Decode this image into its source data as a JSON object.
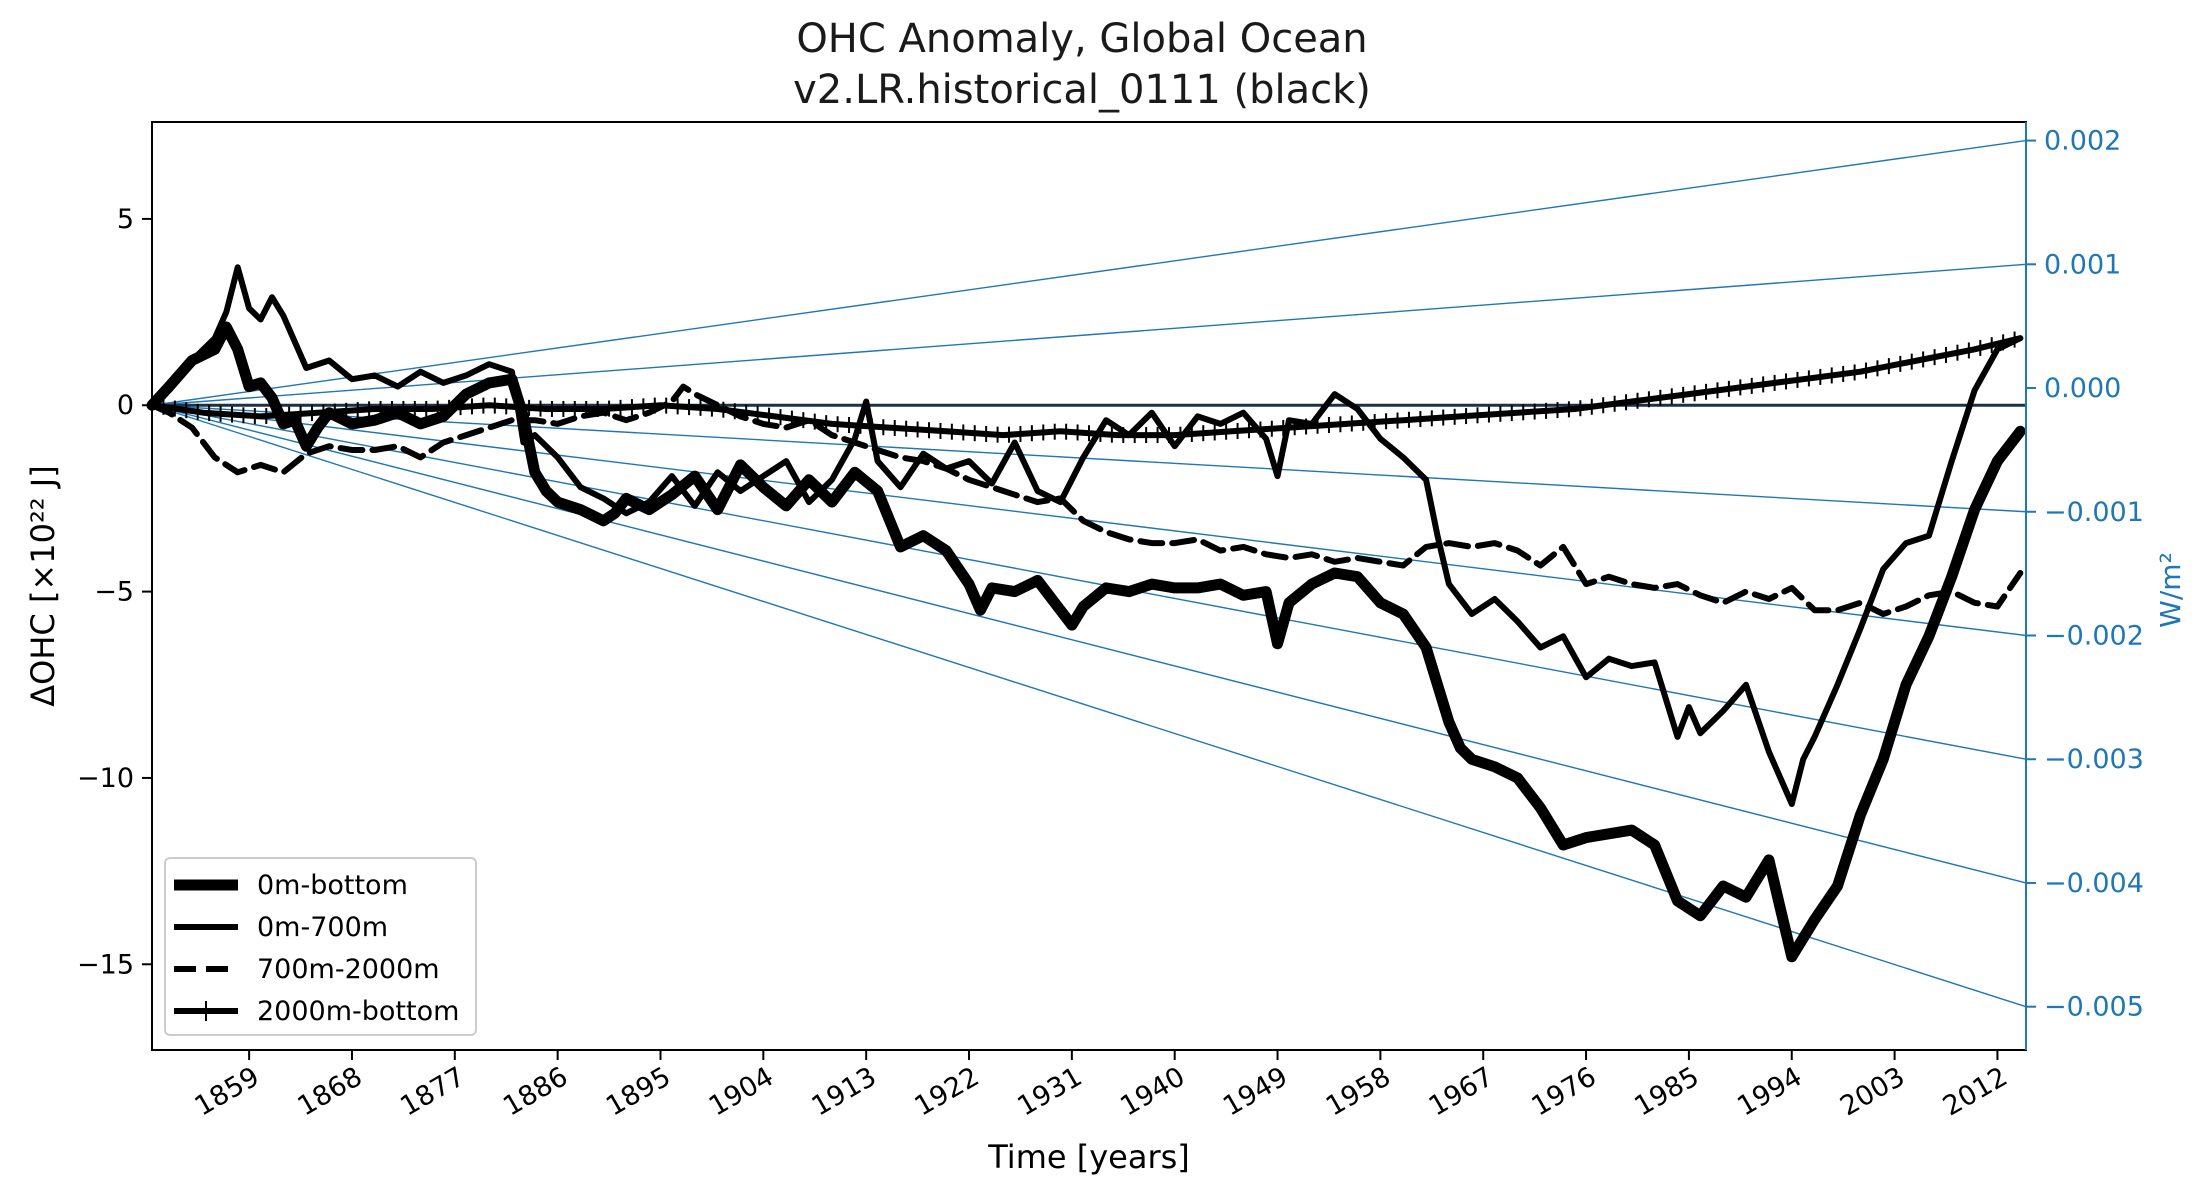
{
  "chart_data": {
    "type": "line",
    "title": "OHC Anomaly, Global Ocean",
    "subtitle": "v2.LR.historical_0111 (black)",
    "xlabel": "Time [years]",
    "ylabel": "ΔOHC [×10²² J]",
    "ylabel_right": "W/m²",
    "xlim": [
      1850.5,
      2014.5
    ],
    "ylim": [
      -17.3,
      7.6
    ],
    "y2lim": [
      -0.00535,
      0.00215
    ],
    "x_ticks": [
      1859,
      1868,
      1877,
      1886,
      1895,
      1904,
      1913,
      1922,
      1931,
      1940,
      1949,
      1958,
      1967,
      1976,
      1985,
      1994,
      2003,
      2012
    ],
    "x_tick_labels": [
      "1859",
      "1868",
      "1877",
      "1886",
      "1895",
      "1904",
      "1913",
      "1922",
      "1931",
      "1940",
      "1949",
      "1958",
      "1967",
      "1976",
      "1985",
      "1994",
      "2003",
      "2012"
    ],
    "y_ticks": [
      5,
      0,
      -5,
      -10,
      -15
    ],
    "y_tick_labels": [
      "5",
      "0",
      "−5",
      "−10",
      "−15"
    ],
    "y2_ticks": [
      0.002,
      0.001,
      0.0,
      -0.001,
      -0.002,
      -0.003,
      -0.004,
      -0.005
    ],
    "y2_tick_labels": [
      "0.002",
      "0.001",
      "0.000",
      "−0.001",
      "−0.002",
      "−0.003",
      "−0.004",
      "−0.005"
    ],
    "reference_lines": {
      "description": "constant heating-rate lines from origin (W/m²)",
      "origin_year": 1850.5,
      "rates": [
        0.002,
        0.001,
        0.0,
        -0.001,
        -0.002,
        -0.003,
        -0.004,
        -0.005
      ]
    },
    "series": [
      {
        "name": "0m-bottom",
        "style": "thick-solid",
        "x": [
          1850.5,
          1852,
          1854,
          1856,
          1857,
          1858,
          1859,
          1860,
          1861,
          1862,
          1863,
          1864,
          1865,
          1866,
          1868,
          1870,
          1872,
          1874,
          1876,
          1878,
          1880,
          1882,
          1883,
          1884,
          1885,
          1886,
          1888,
          1890,
          1891,
          1892,
          1894,
          1896,
          1898,
          1900,
          1902,
          1904,
          1906,
          1908,
          1910,
          1912,
          1914,
          1916,
          1918,
          1920,
          1922,
          1923,
          1924,
          1926,
          1928,
          1930,
          1931,
          1932,
          1934,
          1936,
          1938,
          1940,
          1942,
          1944,
          1946,
          1948,
          1949,
          1950,
          1952,
          1954,
          1956,
          1958,
          1960,
          1962,
          1964,
          1965,
          1966,
          1968,
          1970,
          1972,
          1974,
          1976,
          1978,
          1980,
          1982,
          1984,
          1986,
          1988,
          1990,
          1992,
          1993,
          1994,
          1996,
          1998,
          2000,
          2002,
          2004,
          2006,
          2008,
          2010,
          2012,
          2014
        ],
        "y": [
          0,
          0.5,
          1.2,
          1.5,
          2.1,
          1.5,
          0.5,
          0.6,
          0.2,
          -0.5,
          -0.4,
          -1.1,
          -0.6,
          -0.2,
          -0.5,
          -0.4,
          -0.2,
          -0.5,
          -0.3,
          0.3,
          0.6,
          0.7,
          -0.3,
          -1.8,
          -2.3,
          -2.6,
          -2.8,
          -3.1,
          -2.9,
          -2.5,
          -2.8,
          -2.4,
          -1.9,
          -2.8,
          -1.6,
          -2.2,
          -2.7,
          -2.0,
          -2.6,
          -1.8,
          -2.3,
          -3.8,
          -3.5,
          -3.9,
          -4.8,
          -5.5,
          -4.9,
          -5.0,
          -4.7,
          -5.5,
          -5.9,
          -5.4,
          -4.9,
          -5.0,
          -4.8,
          -4.9,
          -4.9,
          -4.8,
          -5.1,
          -5.0,
          -6.4,
          -5.3,
          -4.8,
          -4.5,
          -4.6,
          -5.3,
          -5.6,
          -6.5,
          -8.5,
          -9.2,
          -9.5,
          -9.7,
          -10.0,
          -10.8,
          -11.8,
          -11.6,
          -11.5,
          -11.4,
          -11.8,
          -13.3,
          -13.7,
          -12.9,
          -13.2,
          -12.2,
          -13.5,
          -14.8,
          -13.8,
          -12.9,
          -11.0,
          -9.5,
          -7.5,
          -6.2,
          -4.6,
          -2.8,
          -1.5,
          -0.7
        ]
      },
      {
        "name": "0m-700m",
        "style": "solid",
        "x": [
          1850.5,
          1852,
          1854,
          1856,
          1857,
          1858,
          1859,
          1860,
          1861,
          1862,
          1864,
          1866,
          1868,
          1870,
          1872,
          1874,
          1876,
          1878,
          1880,
          1882,
          1883,
          1884,
          1886,
          1888,
          1890,
          1892,
          1894,
          1896,
          1898,
          1900,
          1902,
          1904,
          1906,
          1908,
          1910,
          1912,
          1913,
          1914,
          1916,
          1918,
          1920,
          1922,
          1924,
          1926,
          1928,
          1930,
          1932,
          1934,
          1936,
          1938,
          1940,
          1942,
          1944,
          1946,
          1948,
          1949,
          1950,
          1952,
          1954,
          1956,
          1958,
          1960,
          1962,
          1963,
          1964,
          1966,
          1968,
          1970,
          1972,
          1974,
          1976,
          1978,
          1980,
          1982,
          1984,
          1985,
          1986,
          1988,
          1990,
          1992,
          1994,
          1995,
          1996,
          1998,
          2000,
          2002,
          2004,
          2006,
          2008,
          2010,
          2012,
          2014
        ],
        "y": [
          0,
          0.4,
          1.2,
          1.8,
          2.5,
          3.7,
          2.6,
          2.3,
          2.9,
          2.4,
          1.0,
          1.2,
          0.7,
          0.8,
          0.5,
          0.9,
          0.6,
          0.8,
          1.1,
          0.9,
          -1.0,
          -0.8,
          -1.4,
          -2.2,
          -2.5,
          -2.9,
          -2.6,
          -1.9,
          -2.7,
          -1.8,
          -2.3,
          -1.9,
          -1.5,
          -2.6,
          -2.0,
          -0.9,
          0.1,
          -1.5,
          -2.2,
          -1.3,
          -1.7,
          -1.5,
          -2.1,
          -1.0,
          -2.3,
          -2.6,
          -1.4,
          -0.4,
          -0.8,
          -0.2,
          -1.1,
          -0.3,
          -0.5,
          -0.2,
          -0.9,
          -1.9,
          -0.4,
          -0.5,
          0.3,
          -0.1,
          -0.9,
          -1.4,
          -2.0,
          -3.5,
          -4.8,
          -5.6,
          -5.2,
          -5.8,
          -6.5,
          -6.2,
          -7.3,
          -6.8,
          -7.0,
          -6.9,
          -8.9,
          -8.1,
          -8.8,
          -8.2,
          -7.5,
          -9.3,
          -10.7,
          -9.5,
          -8.9,
          -7.5,
          -6.0,
          -4.4,
          -3.7,
          -3.5,
          -1.5,
          0.4,
          1.5,
          1.8
        ]
      },
      {
        "name": "700m-2000m",
        "style": "dashed",
        "x": [
          1850.5,
          1852,
          1854,
          1856,
          1858,
          1860,
          1862,
          1864,
          1866,
          1868,
          1870,
          1872,
          1874,
          1876,
          1878,
          1880,
          1882,
          1884,
          1886,
          1888,
          1890,
          1892,
          1894,
          1896,
          1897,
          1898,
          1900,
          1902,
          1904,
          1906,
          1908,
          1910,
          1912,
          1914,
          1916,
          1918,
          1920,
          1922,
          1924,
          1926,
          1928,
          1930,
          1932,
          1934,
          1936,
          1938,
          1940,
          1942,
          1944,
          1946,
          1948,
          1950,
          1952,
          1954,
          1956,
          1958,
          1960,
          1962,
          1964,
          1966,
          1968,
          1970,
          1972,
          1974,
          1976,
          1978,
          1980,
          1982,
          1984,
          1986,
          1988,
          1990,
          1992,
          1994,
          1996,
          1998,
          2000,
          2002,
          2004,
          2006,
          2008,
          2010,
          2012,
          2014
        ],
        "y": [
          0,
          -0.2,
          -0.6,
          -1.4,
          -1.8,
          -1.6,
          -1.8,
          -1.3,
          -1.1,
          -1.2,
          -1.2,
          -1.1,
          -1.4,
          -1.0,
          -0.8,
          -0.6,
          -0.4,
          -0.4,
          -0.5,
          -0.3,
          -0.2,
          -0.4,
          -0.2,
          0.1,
          0.5,
          0.3,
          0.0,
          -0.3,
          -0.5,
          -0.6,
          -0.4,
          -0.8,
          -1.0,
          -1.2,
          -1.4,
          -1.5,
          -1.7,
          -2.0,
          -2.2,
          -2.4,
          -2.6,
          -2.5,
          -3.1,
          -3.4,
          -3.6,
          -3.7,
          -3.7,
          -3.6,
          -3.9,
          -3.8,
          -4.0,
          -4.1,
          -4.0,
          -4.2,
          -4.1,
          -4.2,
          -4.3,
          -3.8,
          -3.7,
          -3.8,
          -3.7,
          -3.9,
          -4.3,
          -3.8,
          -4.8,
          -4.6,
          -4.8,
          -4.9,
          -4.8,
          -5.1,
          -5.3,
          -5.0,
          -5.2,
          -4.9,
          -5.5,
          -5.5,
          -5.3,
          -5.6,
          -5.4,
          -5.1,
          -5.0,
          -5.3,
          -5.4,
          -4.5
        ]
      },
      {
        "name": "2000m-bottom",
        "style": "solid-plus",
        "x": [
          1850.5,
          1855,
          1860,
          1865,
          1870,
          1875,
          1880,
          1885,
          1890,
          1895,
          1900,
          1905,
          1910,
          1915,
          1920,
          1925,
          1930,
          1935,
          1940,
          1945,
          1950,
          1955,
          1960,
          1965,
          1970,
          1975,
          1980,
          1985,
          1990,
          1995,
          2000,
          2005,
          2010,
          2014
        ],
        "y": [
          0,
          -0.2,
          -0.3,
          -0.2,
          -0.1,
          -0.1,
          0.0,
          -0.1,
          -0.1,
          0.0,
          -0.1,
          -0.3,
          -0.5,
          -0.6,
          -0.7,
          -0.8,
          -0.7,
          -0.8,
          -0.8,
          -0.7,
          -0.6,
          -0.5,
          -0.4,
          -0.3,
          -0.2,
          -0.1,
          0.1,
          0.3,
          0.5,
          0.7,
          0.9,
          1.2,
          1.5,
          1.8
        ]
      }
    ],
    "legend": {
      "position": "lower-left",
      "entries": [
        "0m-bottom",
        "0m-700m",
        "700m-2000m",
        "2000m-bottom"
      ]
    },
    "colors": {
      "series": "#000000",
      "right_axis": "#1f77b4",
      "zero_line": "#1e3046"
    }
  }
}
